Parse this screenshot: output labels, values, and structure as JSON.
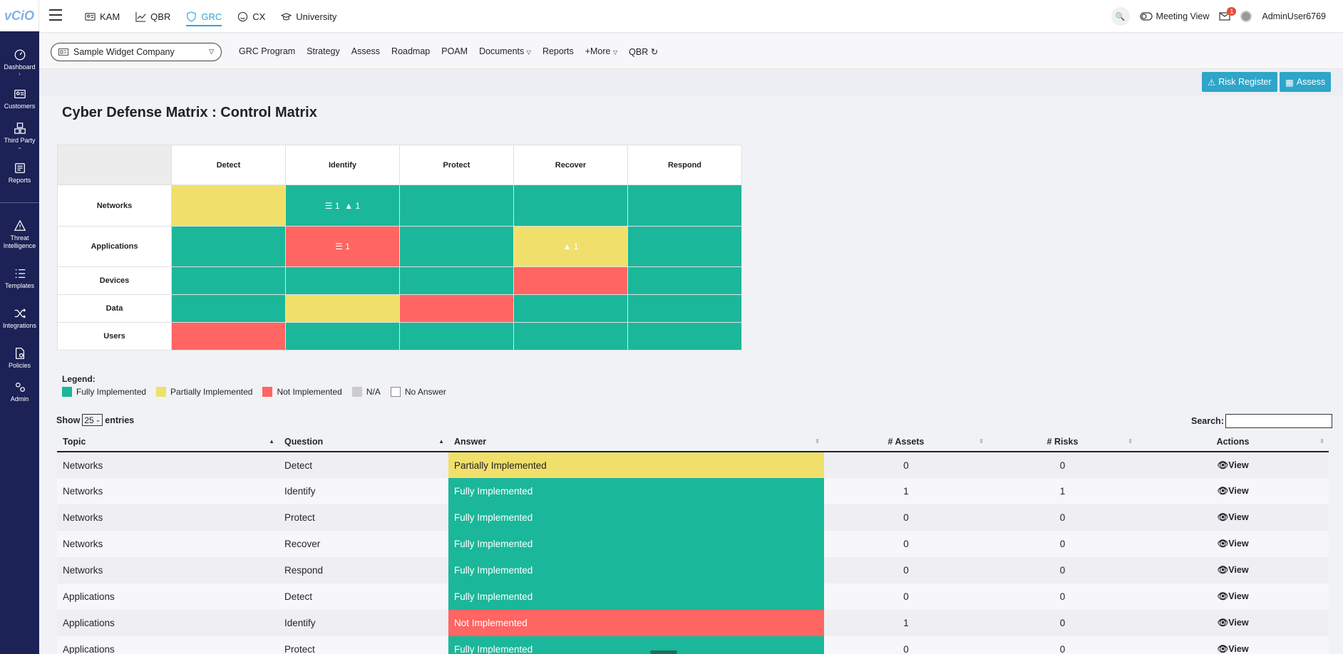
{
  "brand": {
    "logo_text": "vCiO"
  },
  "sidebar": {
    "items": [
      {
        "label": "Dashboard",
        "icon": "dashboard-icon"
      },
      {
        "label": "Customers",
        "icon": "id-card-icon"
      },
      {
        "label": "Third Party",
        "icon": "boxes-icon"
      },
      {
        "label": "Reports",
        "icon": "report-icon"
      },
      {
        "label": "Threat Intelligence",
        "icon": "warning-icon"
      },
      {
        "label": "Templates",
        "icon": "list-icon"
      },
      {
        "label": "Integrations",
        "icon": "shuffle-icon"
      },
      {
        "label": "Policies",
        "icon": "document-gear-icon"
      },
      {
        "label": "Admin",
        "icon": "gears-icon"
      }
    ]
  },
  "topnav": {
    "items": [
      {
        "label": "KAM",
        "icon": "people-card-icon"
      },
      {
        "label": "QBR",
        "icon": "line-chart-icon"
      },
      {
        "label": "GRC",
        "icon": "shield-icon",
        "active": true
      },
      {
        "label": "CX",
        "icon": "smile-icon"
      },
      {
        "label": "University",
        "icon": "graduation-cap-icon"
      }
    ],
    "meeting_view": "Meeting View",
    "mail_count": "1",
    "user": "AdminUser6769"
  },
  "subnav": {
    "company": "Sample Widget Company",
    "items": [
      "GRC Program",
      "Strategy",
      "Assess",
      "Roadmap",
      "POAM",
      "Documents",
      "Reports",
      "+More",
      "QBR"
    ]
  },
  "actions": {
    "risk_register": "Risk Register",
    "assess": "Assess"
  },
  "page": {
    "title": "Cyber Defense Matrix : Control Matrix"
  },
  "matrix": {
    "columns": [
      "Detect",
      "Identify",
      "Protect",
      "Recover",
      "Respond"
    ],
    "rows": [
      {
        "label": "Networks",
        "cells": [
          "part",
          "full",
          "full",
          "full",
          "full"
        ]
      },
      {
        "label": "Applications",
        "cells": [
          "full",
          "not",
          "full",
          "part",
          "full"
        ]
      },
      {
        "label": "Devices",
        "cells": [
          "full",
          "full",
          "full",
          "not",
          "full"
        ]
      },
      {
        "label": "Data",
        "cells": [
          "full",
          "part",
          "not",
          "full",
          "full"
        ]
      },
      {
        "label": "Users",
        "cells": [
          "not",
          "full",
          "full",
          "full",
          "full"
        ]
      }
    ],
    "badges": {
      "networks_identify_assets": "1",
      "networks_identify_risks": "1",
      "applications_identify_assets": "1",
      "applications_recover_risks": "1"
    }
  },
  "legend": {
    "title": "Legend:",
    "items": [
      {
        "label": "Fully Implemented",
        "color": "#1bb79a"
      },
      {
        "label": "Partially Implemented",
        "color": "#f0e06b"
      },
      {
        "label": "Not Implemented",
        "color": "#ff6562"
      },
      {
        "label": "N/A",
        "color": "#cccccc"
      },
      {
        "label": "No Answer",
        "color": "#ffffff"
      }
    ]
  },
  "table_controls": {
    "show": "Show",
    "entries_value": "25",
    "entries": "entries",
    "search": "Search:"
  },
  "table": {
    "headers": [
      "Topic",
      "Question",
      "Answer",
      "# Assets",
      "# Risks",
      "Actions"
    ],
    "view_label": "View",
    "rows": [
      {
        "topic": "Networks",
        "question": "Detect",
        "answer": "Partially Implemented",
        "status": "part",
        "assets": "0",
        "risks": "0"
      },
      {
        "topic": "Networks",
        "question": "Identify",
        "answer": "Fully Implemented",
        "status": "full",
        "assets": "1",
        "risks": "1"
      },
      {
        "topic": "Networks",
        "question": "Protect",
        "answer": "Fully Implemented",
        "status": "full",
        "assets": "0",
        "risks": "0"
      },
      {
        "topic": "Networks",
        "question": "Recover",
        "answer": "Fully Implemented",
        "status": "full",
        "assets": "0",
        "risks": "0"
      },
      {
        "topic": "Networks",
        "question": "Respond",
        "answer": "Fully Implemented",
        "status": "full",
        "assets": "0",
        "risks": "0"
      },
      {
        "topic": "Applications",
        "question": "Detect",
        "answer": "Fully Implemented",
        "status": "full",
        "assets": "0",
        "risks": "0"
      },
      {
        "topic": "Applications",
        "question": "Identify",
        "answer": "Not Implemented",
        "status": "not",
        "assets": "1",
        "risks": "0"
      },
      {
        "topic": "Applications",
        "question": "Protect",
        "answer": "Fully Implemented",
        "status": "full",
        "assets": "0",
        "risks": "0"
      }
    ]
  }
}
